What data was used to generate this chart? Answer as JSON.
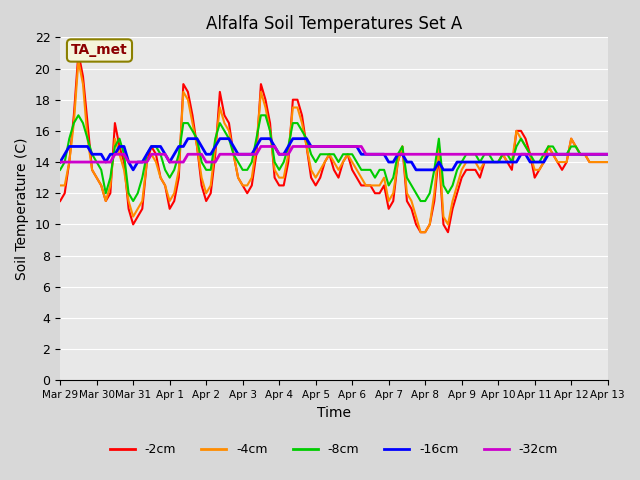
{
  "title": "Alfalfa Soil Temperatures Set A",
  "xlabel": "Time",
  "ylabel": "Soil Temperature (C)",
  "ylim": [
    0,
    22
  ],
  "yticks": [
    0,
    2,
    4,
    6,
    8,
    10,
    12,
    14,
    16,
    18,
    20,
    22
  ],
  "annotation_label": "TA_met",
  "annotation_color": "#8B0000",
  "annotation_bg": "#F5F5DC",
  "x_tick_labels": [
    "Mar 29",
    "Mar 30",
    "Mar 31",
    "Apr 1",
    "Apr 2",
    "Apr 3",
    "Apr 4",
    "Apr 5",
    "Apr 6",
    "Apr 7",
    "Apr 8",
    "Apr 9",
    "Apr 10",
    "Apr 11",
    "Apr 12",
    "Apr 13"
  ],
  "fig_bg_color": "#D8D8D8",
  "ax_bg_color": "#E8E8E8",
  "series_keys": [
    "depth_2cm",
    "depth_4cm",
    "depth_8cm",
    "depth_16cm",
    "depth_32cm"
  ],
  "series": {
    "depth_2cm": {
      "label": "-2cm",
      "color": "#FF0000",
      "linewidth": 1.5
    },
    "depth_4cm": {
      "label": "-4cm",
      "color": "#FF8C00",
      "linewidth": 1.5
    },
    "depth_8cm": {
      "label": "-8cm",
      "color": "#00CC00",
      "linewidth": 1.5
    },
    "depth_16cm": {
      "label": "-16cm",
      "color": "#0000FF",
      "linewidth": 2.0
    },
    "depth_32cm": {
      "label": "-32cm",
      "color": "#CC00CC",
      "linewidth": 2.0
    }
  },
  "data": {
    "x_days": [
      0.0,
      0.125,
      0.25,
      0.375,
      0.5,
      0.625,
      0.75,
      0.875,
      1.0,
      1.125,
      1.25,
      1.375,
      1.5,
      1.625,
      1.75,
      1.875,
      2.0,
      2.125,
      2.25,
      2.375,
      2.5,
      2.625,
      2.75,
      2.875,
      3.0,
      3.125,
      3.25,
      3.375,
      3.5,
      3.625,
      3.75,
      3.875,
      4.0,
      4.125,
      4.25,
      4.375,
      4.5,
      4.625,
      4.75,
      4.875,
      5.0,
      5.125,
      5.25,
      5.375,
      5.5,
      5.625,
      5.75,
      5.875,
      6.0,
      6.125,
      6.25,
      6.375,
      6.5,
      6.625,
      6.75,
      6.875,
      7.0,
      7.125,
      7.25,
      7.375,
      7.5,
      7.625,
      7.75,
      7.875,
      8.0,
      8.125,
      8.25,
      8.375,
      8.5,
      8.625,
      8.75,
      8.875,
      9.0,
      9.125,
      9.25,
      9.375,
      9.5,
      9.625,
      9.75,
      9.875,
      10.0,
      10.125,
      10.25,
      10.375,
      10.5,
      10.625,
      10.75,
      10.875,
      11.0,
      11.125,
      11.25,
      11.375,
      11.5,
      11.625,
      11.75,
      11.875,
      12.0,
      12.125,
      12.25,
      12.375,
      12.5,
      12.625,
      12.75,
      12.875,
      13.0,
      13.125,
      13.25,
      13.375,
      13.5,
      13.625,
      13.75,
      13.875,
      14.0,
      14.125,
      14.25,
      14.375,
      14.5,
      14.625,
      14.75,
      14.875,
      15.0
    ],
    "depth_2cm": [
      11.5,
      12.0,
      14.0,
      17.0,
      21.0,
      19.5,
      16.5,
      13.5,
      13.0,
      12.5,
      11.5,
      12.0,
      16.5,
      15.0,
      14.0,
      11.0,
      10.0,
      10.5,
      11.0,
      14.0,
      15.0,
      14.5,
      13.0,
      12.5,
      11.0,
      11.5,
      13.0,
      19.0,
      18.5,
      17.0,
      15.0,
      12.5,
      11.5,
      12.0,
      14.5,
      18.5,
      17.0,
      16.5,
      14.5,
      13.0,
      12.5,
      12.0,
      12.5,
      14.5,
      19.0,
      18.0,
      16.5,
      13.0,
      12.5,
      12.5,
      14.0,
      18.0,
      18.0,
      17.0,
      15.0,
      13.0,
      12.5,
      13.0,
      14.0,
      14.5,
      13.5,
      13.0,
      14.0,
      14.5,
      13.5,
      13.0,
      12.5,
      12.5,
      12.5,
      12.0,
      12.0,
      12.5,
      11.0,
      11.5,
      14.0,
      15.0,
      11.5,
      11.0,
      10.0,
      9.5,
      9.5,
      10.0,
      11.5,
      14.5,
      10.0,
      9.5,
      11.0,
      12.0,
      13.0,
      13.5,
      13.5,
      13.5,
      13.0,
      14.0,
      14.0,
      14.0,
      14.0,
      14.5,
      14.0,
      13.5,
      16.0,
      16.0,
      15.5,
      14.5,
      13.0,
      13.5,
      14.0,
      15.0,
      14.5,
      14.0,
      13.5,
      14.0,
      15.5,
      15.0,
      14.5,
      14.5,
      14.0,
      14.0,
      14.0,
      14.0,
      14.0
    ],
    "depth_4cm": [
      12.5,
      12.5,
      14.0,
      16.5,
      20.5,
      19.0,
      15.5,
      13.5,
      13.0,
      12.5,
      11.5,
      12.5,
      15.5,
      14.5,
      13.5,
      11.5,
      10.5,
      11.0,
      11.5,
      14.0,
      14.5,
      14.0,
      13.0,
      12.5,
      11.5,
      12.0,
      13.5,
      18.5,
      18.0,
      16.5,
      15.0,
      13.0,
      12.0,
      12.5,
      15.0,
      17.5,
      16.5,
      16.0,
      14.5,
      13.0,
      12.5,
      12.5,
      13.0,
      15.0,
      18.5,
      17.5,
      16.0,
      13.5,
      13.0,
      13.0,
      14.5,
      17.5,
      17.5,
      16.5,
      15.0,
      13.5,
      13.0,
      13.5,
      14.0,
      14.5,
      14.0,
      13.5,
      14.0,
      14.5,
      14.0,
      13.5,
      13.0,
      12.5,
      12.5,
      12.5,
      12.5,
      13.0,
      11.5,
      12.0,
      14.0,
      15.0,
      12.0,
      11.5,
      10.5,
      9.5,
      9.5,
      10.0,
      12.0,
      15.0,
      10.5,
      10.0,
      11.5,
      12.5,
      13.5,
      14.0,
      14.0,
      14.0,
      13.5,
      14.0,
      14.0,
      14.0,
      14.0,
      14.5,
      14.0,
      14.0,
      16.0,
      15.5,
      15.0,
      14.5,
      13.5,
      13.5,
      14.0,
      15.0,
      14.5,
      14.0,
      14.0,
      14.0,
      15.5,
      15.0,
      14.5,
      14.5,
      14.0,
      14.0,
      14.0,
      14.0,
      14.0
    ],
    "depth_8cm": [
      13.5,
      14.0,
      15.5,
      16.5,
      17.0,
      16.5,
      15.5,
      14.5,
      14.0,
      13.5,
      12.0,
      13.0,
      15.0,
      15.5,
      14.5,
      12.0,
      11.5,
      12.0,
      13.0,
      14.5,
      15.0,
      15.0,
      14.5,
      13.5,
      13.0,
      13.5,
      14.5,
      16.5,
      16.5,
      16.0,
      15.5,
      14.0,
      13.5,
      13.5,
      15.5,
      16.5,
      16.0,
      15.5,
      14.5,
      14.0,
      13.5,
      13.5,
      14.0,
      15.5,
      17.0,
      17.0,
      16.0,
      14.0,
      13.5,
      14.0,
      15.0,
      16.5,
      16.5,
      16.0,
      15.5,
      14.5,
      14.0,
      14.5,
      14.5,
      14.5,
      14.5,
      14.0,
      14.5,
      14.5,
      14.5,
      14.0,
      13.5,
      13.5,
      13.5,
      13.0,
      13.5,
      13.5,
      12.5,
      13.0,
      14.5,
      15.0,
      13.0,
      12.5,
      12.0,
      11.5,
      11.5,
      12.0,
      13.5,
      15.5,
      12.5,
      12.0,
      12.5,
      13.5,
      14.0,
      14.5,
      14.5,
      14.5,
      14.0,
      14.5,
      14.5,
      14.0,
      14.0,
      14.5,
      14.5,
      14.0,
      15.0,
      15.5,
      15.0,
      14.5,
      14.0,
      14.0,
      14.5,
      15.0,
      15.0,
      14.5,
      14.5,
      14.5,
      15.0,
      15.0,
      14.5,
      14.5,
      14.5,
      14.5,
      14.5,
      14.5,
      14.5
    ],
    "depth_16cm": [
      14.0,
      14.5,
      15.0,
      15.0,
      15.0,
      15.0,
      15.0,
      14.5,
      14.5,
      14.5,
      14.0,
      14.5,
      14.5,
      15.0,
      15.0,
      14.0,
      13.5,
      14.0,
      14.0,
      14.5,
      15.0,
      15.0,
      15.0,
      14.5,
      14.0,
      14.5,
      15.0,
      15.0,
      15.5,
      15.5,
      15.5,
      15.0,
      14.5,
      14.5,
      15.0,
      15.5,
      15.5,
      15.5,
      15.0,
      14.5,
      14.5,
      14.5,
      14.5,
      15.0,
      15.5,
      15.5,
      15.5,
      15.0,
      14.5,
      14.5,
      15.0,
      15.5,
      15.5,
      15.5,
      15.5,
      15.0,
      15.0,
      15.0,
      15.0,
      15.0,
      15.0,
      15.0,
      15.0,
      15.0,
      15.0,
      15.0,
      14.5,
      14.5,
      14.5,
      14.5,
      14.5,
      14.5,
      14.0,
      14.0,
      14.5,
      14.5,
      14.0,
      14.0,
      13.5,
      13.5,
      13.5,
      13.5,
      13.5,
      14.0,
      13.5,
      13.5,
      13.5,
      14.0,
      14.0,
      14.0,
      14.0,
      14.0,
      14.0,
      14.0,
      14.0,
      14.0,
      14.0,
      14.0,
      14.0,
      14.0,
      14.0,
      14.5,
      14.5,
      14.0,
      14.0,
      14.0,
      14.0,
      14.5,
      14.5,
      14.5,
      14.5,
      14.5,
      14.5,
      14.5,
      14.5,
      14.5,
      14.5,
      14.5,
      14.5,
      14.5,
      14.5
    ],
    "depth_32cm": [
      14.0,
      14.0,
      14.0,
      14.0,
      14.0,
      14.0,
      14.0,
      14.0,
      14.0,
      14.0,
      14.0,
      14.0,
      14.5,
      14.5,
      14.5,
      14.0,
      14.0,
      14.0,
      14.0,
      14.0,
      14.5,
      14.5,
      14.5,
      14.5,
      14.0,
      14.0,
      14.0,
      14.0,
      14.5,
      14.5,
      14.5,
      14.5,
      14.0,
      14.0,
      14.0,
      14.5,
      14.5,
      14.5,
      14.5,
      14.5,
      14.5,
      14.5,
      14.5,
      14.5,
      15.0,
      15.0,
      15.0,
      15.0,
      14.5,
      14.5,
      14.5,
      15.0,
      15.0,
      15.0,
      15.0,
      15.0,
      15.0,
      15.0,
      15.0,
      15.0,
      15.0,
      15.0,
      15.0,
      15.0,
      15.0,
      15.0,
      15.0,
      14.5,
      14.5,
      14.5,
      14.5,
      14.5,
      14.5,
      14.5,
      14.5,
      14.5,
      14.5,
      14.5,
      14.5,
      14.5,
      14.5,
      14.5,
      14.5,
      14.5,
      14.5,
      14.5,
      14.5,
      14.5,
      14.5,
      14.5,
      14.5,
      14.5,
      14.5,
      14.5,
      14.5,
      14.5,
      14.5,
      14.5,
      14.5,
      14.5,
      14.5,
      14.5,
      14.5,
      14.5,
      14.5,
      14.5,
      14.5,
      14.5,
      14.5,
      14.5,
      14.5,
      14.5,
      14.5,
      14.5,
      14.5,
      14.5,
      14.5,
      14.5,
      14.5,
      14.5,
      14.5
    ]
  }
}
